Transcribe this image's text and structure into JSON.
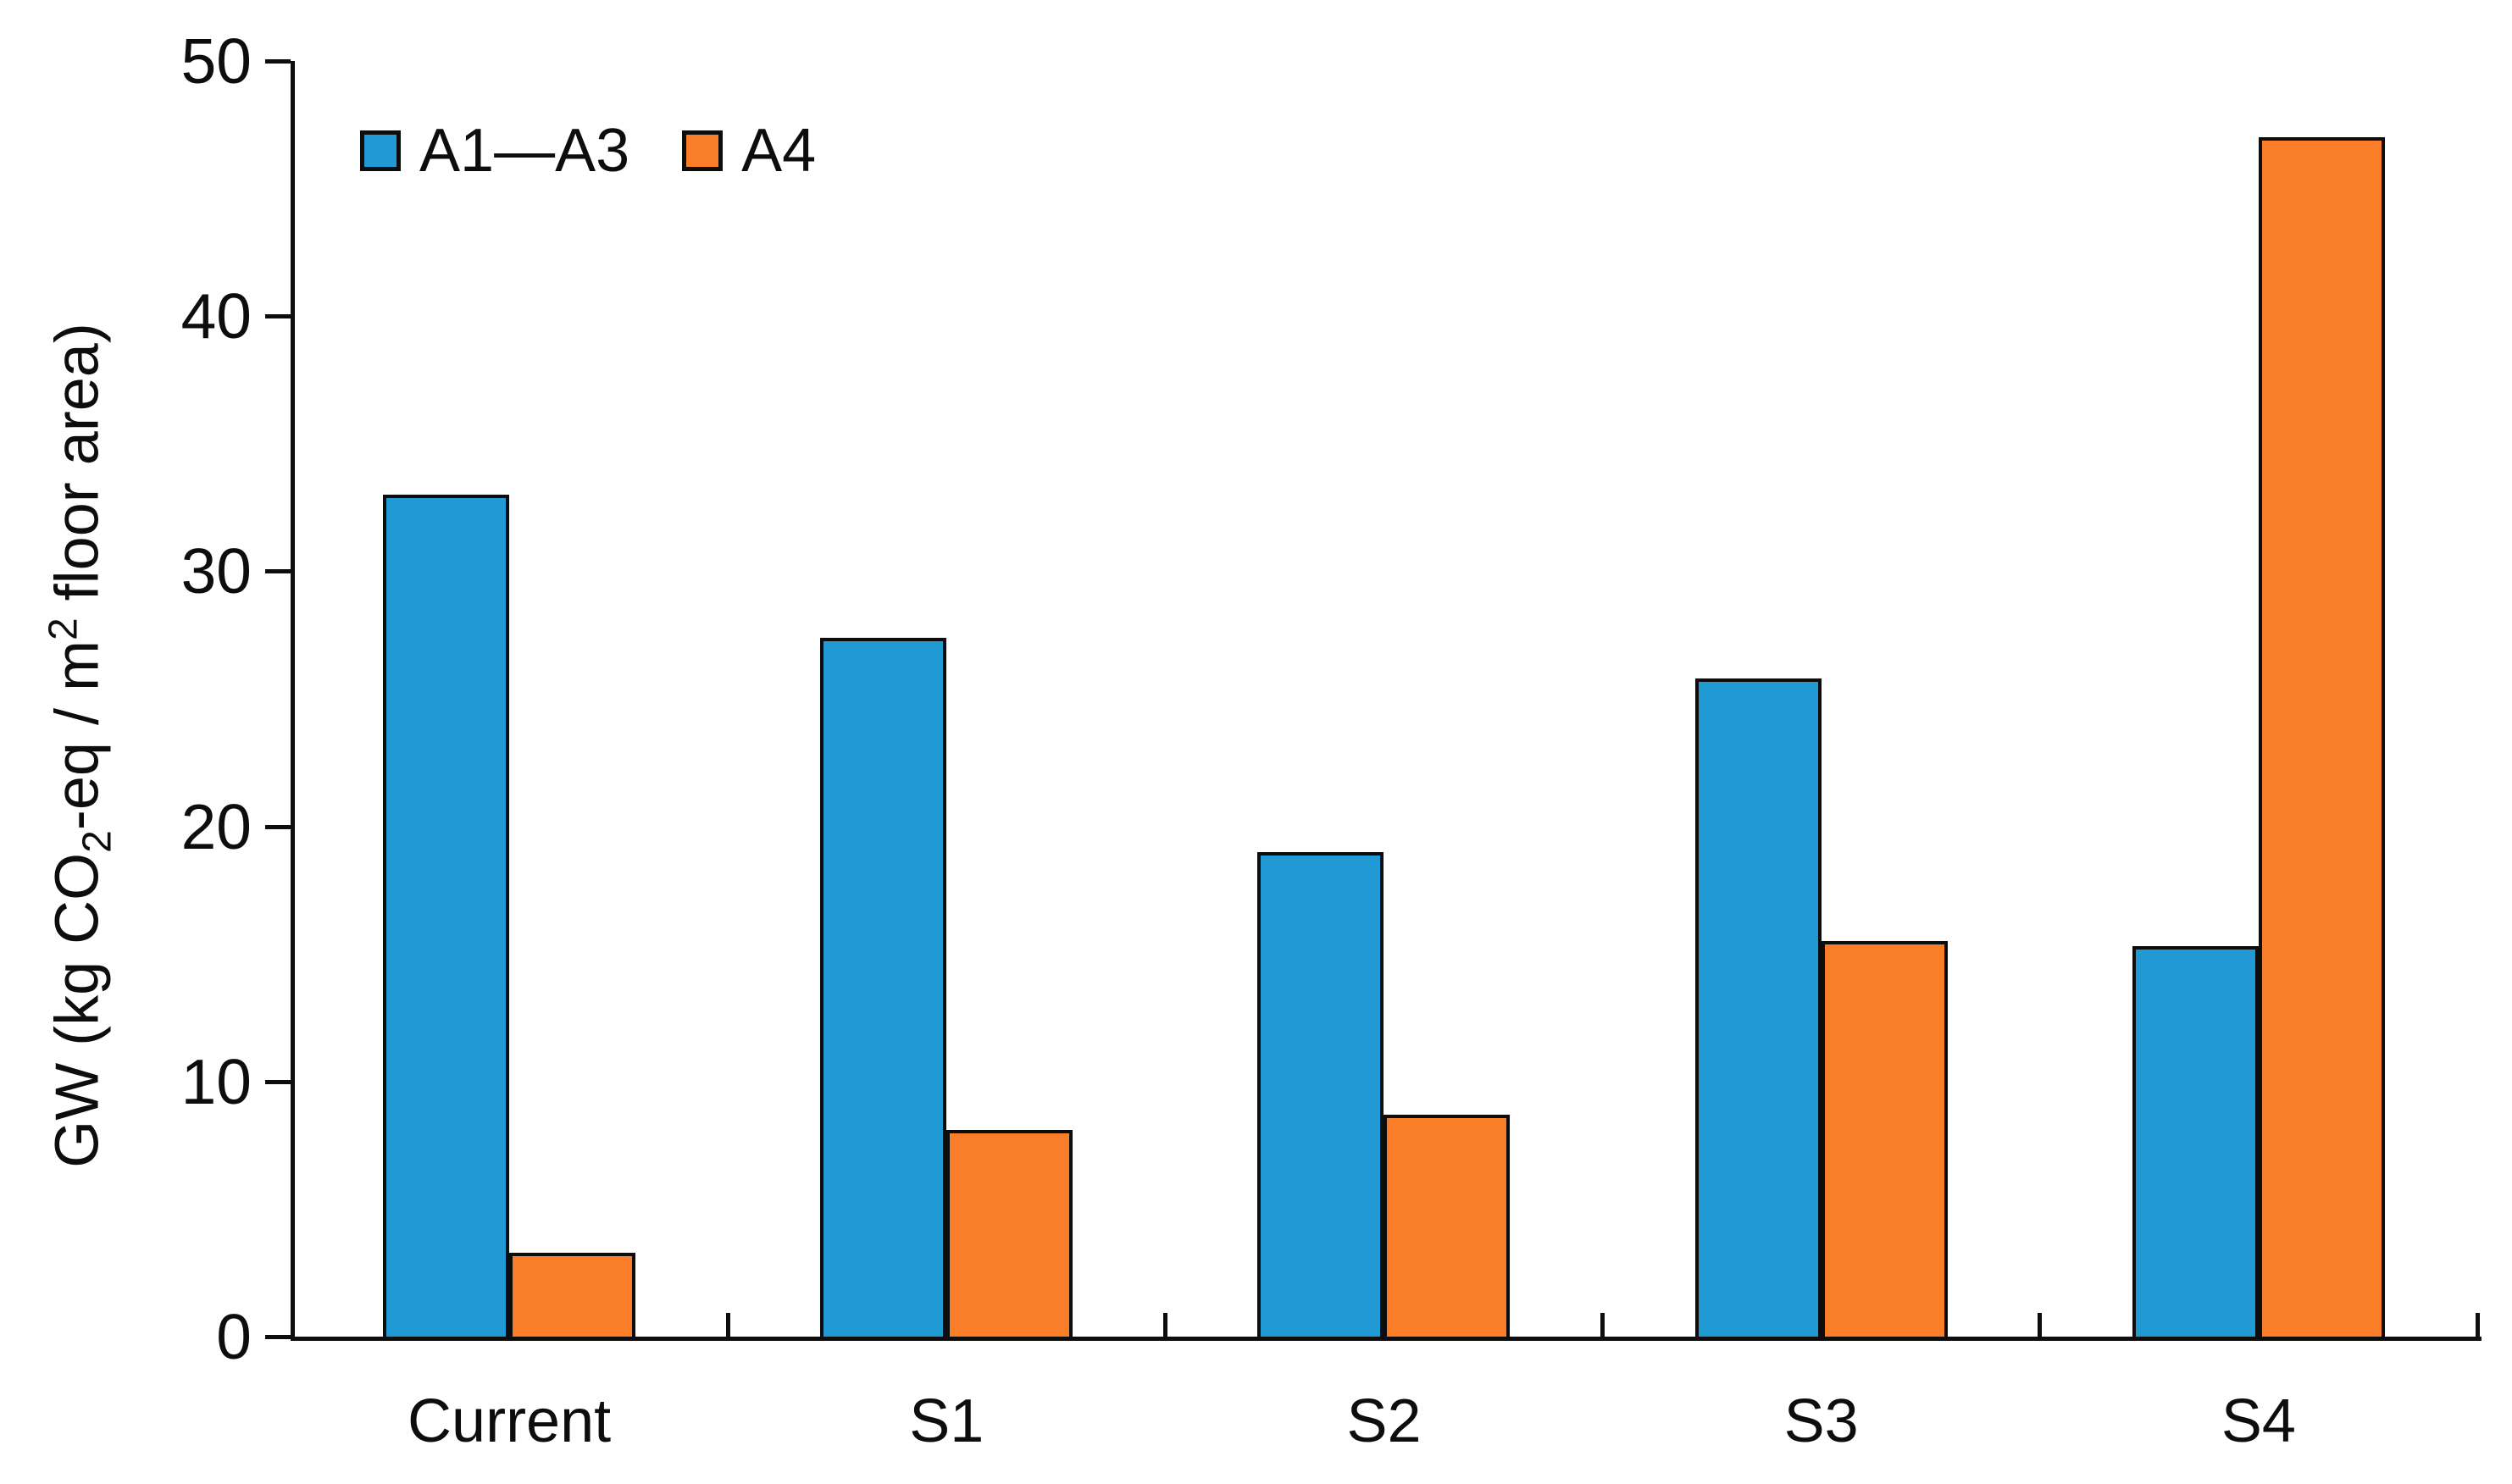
{
  "chart_data": {
    "type": "bar",
    "categories": [
      "Current",
      "S1",
      "S2",
      "S3",
      "S4"
    ],
    "series": [
      {
        "name": "A1—A3",
        "color": "#2099D4",
        "values": [
          33.0,
          27.4,
          19.0,
          25.8,
          15.3
        ]
      },
      {
        "name": "A4",
        "color": "#FA7E28",
        "values": [
          3.3,
          8.1,
          8.7,
          15.5,
          47.0
        ]
      }
    ],
    "title": "",
    "xlabel": "",
    "ylabel": "GW (kg CO2-eq / m2 floor area)",
    "ylabel_parts": {
      "pre": "GW (kg CO",
      "sub": "2",
      "mid": "-eq / m",
      "sup": "2",
      "post": " floor area)"
    },
    "ylim": [
      0,
      50
    ],
    "ytick_interval": 10,
    "ytick_labels": [
      "0",
      "10",
      "20",
      "30",
      "40",
      "50"
    ],
    "grid": false,
    "legend_position": "top-left-inside",
    "bar_border_color": "#0d0d0d",
    "axis_color": "#0d0d0d",
    "background_color": "#ffffff"
  }
}
